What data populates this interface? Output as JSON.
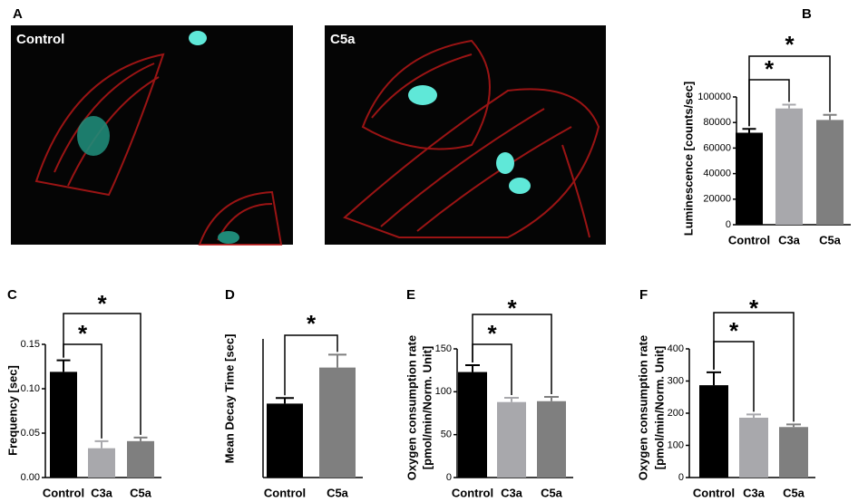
{
  "figure_a": {
    "label": "A",
    "images": [
      {
        "label": "Control"
      },
      {
        "label": "C5a"
      }
    ]
  },
  "chart_data": [
    {
      "type": "bar",
      "label": "B",
      "ylabel": [
        "Luminescence [counts/sec]"
      ],
      "categories": [
        "Control",
        "C3a",
        "C5a"
      ],
      "values": [
        72000,
        91000,
        82000
      ],
      "errors": [
        3000,
        3000,
        4000
      ],
      "colors": [
        "#000000",
        "#a8a8ac",
        "#7f7f7f"
      ],
      "ylim": [
        0,
        100000
      ],
      "yticks": [
        0,
        20000,
        40000,
        60000,
        80000,
        100000
      ],
      "annotations": [
        "*",
        "*"
      ]
    },
    {
      "type": "bar",
      "label": "C",
      "ylabel": [
        "Frequency [sec]"
      ],
      "categories": [
        "Control",
        "C3a",
        "C5a"
      ],
      "values": [
        0.119,
        0.033,
        0.041
      ],
      "errors": [
        0.013,
        0.008,
        0.004
      ],
      "colors": [
        "#000000",
        "#a8a8ac",
        "#7f7f7f"
      ],
      "ylim": [
        0,
        0.15
      ],
      "yticks": [
        {
          "value": 0,
          "label": "0.00"
        },
        0.05,
        {
          "value": 0.1,
          "label": "0.10"
        },
        0.15
      ],
      "annotations": [
        "*",
        "*"
      ]
    },
    {
      "type": "bar",
      "label": "D",
      "ylabel": [
        "Mean Decay Time [sec]"
      ],
      "categories": [
        "Control",
        "C5a"
      ],
      "values": [
        1.6,
        2.38
      ],
      "errors": [
        0.12,
        0.28
      ],
      "colors": [
        "#000000",
        "#7f7f7f"
      ],
      "ylim": [
        0,
        3
      ],
      "yticks": [],
      "annotations": [
        "*"
      ]
    },
    {
      "type": "bar",
      "label": "E",
      "ylabel": [
        "Oxygen consumption rate",
        "[pmol/min/Norm. Unit]"
      ],
      "categories": [
        "Control",
        "C3a",
        "C5a"
      ],
      "values": [
        123,
        88,
        89
      ],
      "errors": [
        8,
        5,
        5
      ],
      "colors": [
        "#000000",
        "#a8a8ac",
        "#7f7f7f"
      ],
      "ylim": [
        0,
        150
      ],
      "yticks": [
        0,
        50,
        100,
        150
      ],
      "annotations": [
        "*",
        "*"
      ]
    },
    {
      "type": "bar",
      "label": "F",
      "ylabel": [
        "Oxygen consumption rate",
        "[pmol/min/Norm. Unit]"
      ],
      "categories": [
        "Control",
        "C3a",
        "C5a"
      ],
      "values": [
        287,
        186,
        157
      ],
      "errors": [
        40,
        10,
        8
      ],
      "colors": [
        "#000000",
        "#a8a8ac",
        "#7f7f7f"
      ],
      "ylim": [
        0,
        400
      ],
      "yticks": [
        0,
        100,
        200,
        300,
        400
      ],
      "annotations": [
        "*",
        "*"
      ]
    }
  ]
}
